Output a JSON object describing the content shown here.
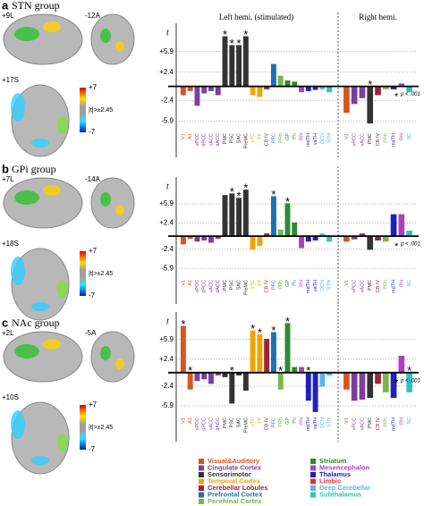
{
  "chart_data": [
    {
      "type": "bar",
      "panel": "a",
      "title": "STN group",
      "slice_labels": [
        "+9L",
        "-12A",
        "+17S"
      ],
      "colorbar_ticks": [
        {
          "value": 7,
          "label": "+7"
        },
        -7
      ],
      "threshold_label": "|t|>±2.45",
      "ylabel": "t",
      "ylim": [
        -7.5,
        9.5
      ],
      "yticks": [
        {
          "value": 5.9,
          "label": "+5.9"
        },
        {
          "value": 2.4,
          "label": "+2.4"
        },
        -2.4,
        -5.9
      ],
      "star": "*",
      "note": "p < .001",
      "hemispheres": [
        {
          "name": "Left hemi. (stimulated)",
          "categories": [
            "V1",
            "A1",
            "vPCC",
            "dPCC",
            "vACC",
            "dACC",
            "PMC",
            "PSC",
            "SAC",
            "PreMC",
            "vTC",
            "TP",
            "CB IV",
            "PFC",
            "PRh",
            "GP",
            "Pu",
            "RN",
            "mdTH",
            "vaTH",
            "DCN",
            "STN"
          ],
          "colors": [
            "#d9541e",
            "#d9541e",
            "#7b3fa0",
            "#7b3fa0",
            "#7b3fa0",
            "#7b3fa0",
            "#333333",
            "#333333",
            "#333333",
            "#333333",
            "#f0a400",
            "#f0a400",
            "#a0203c",
            "#1f6fb5",
            "#7ab648",
            "#2e8b2e",
            "#2e8b2e",
            "#b040c0",
            "#2020c0",
            "#2020c0",
            "#5bb5e8",
            "#30c0c0"
          ],
          "values": [
            -1.5,
            -0.8,
            -3.3,
            -1.2,
            -0.8,
            -1.5,
            8.5,
            7.0,
            7.0,
            8.5,
            -1.5,
            -1.8,
            -0.5,
            3.8,
            1.8,
            1.0,
            0.8,
            -1.0,
            -0.8,
            -0.6,
            -0.5,
            -1.0
          ],
          "stars": [
            6,
            7,
            8,
            9
          ]
        },
        {
          "name": "Right hemi.",
          "categories": [
            "V1",
            "vPCC",
            "vACC",
            "PMC",
            "CB IV",
            "PRh",
            "mdTH",
            "RN",
            "SC"
          ],
          "colors": [
            "#d9541e",
            "#7b3fa0",
            "#7b3fa0",
            "#333333",
            "#a0203c",
            "#7ab648",
            "#2020c0",
            "#b040c0",
            "#30c0c0"
          ],
          "values": [
            -4.5,
            -3.0,
            -2.0,
            -6.3,
            -1.5,
            -0.5,
            -0.5,
            0.5,
            -1.0
          ],
          "stars": [
            3
          ]
        }
      ]
    },
    {
      "type": "bar",
      "panel": "b",
      "title": "GPi group",
      "slice_labels": [
        "+7L",
        "-14A",
        "+18S"
      ],
      "colorbar_ticks": [
        {
          "value": 7,
          "label": "+7"
        },
        -7
      ],
      "threshold_label": "|t|>±2.45",
      "ylabel": "t",
      "ylim": [
        -7.5,
        9.5
      ],
      "yticks": [
        {
          "value": 5.9,
          "label": "+5.9"
        },
        {
          "value": 2.4,
          "label": "+2.4"
        },
        -2.4,
        -5.9
      ],
      "star": "*",
      "note": "p < .001",
      "hemispheres": [
        {
          "categories": [
            "V1",
            "A1",
            "vPCC",
            "dPCC",
            "vACC",
            "dACC",
            "PMC",
            "PSC",
            "SAC",
            "PreMC",
            "vTC",
            "TP",
            "CB IV",
            "PFC",
            "PRh",
            "GP",
            "Pu",
            "RN",
            "mdTH",
            "vaTH",
            "DCN",
            "STN"
          ],
          "colors": [
            "#d9541e",
            "#d9541e",
            "#7b3fa0",
            "#7b3fa0",
            "#7b3fa0",
            "#7b3fa0",
            "#333333",
            "#333333",
            "#333333",
            "#333333",
            "#f0a400",
            "#f0a400",
            "#a0203c",
            "#1f6fb5",
            "#7ab648",
            "#2e8b2e",
            "#2e8b2e",
            "#b040c0",
            "#2020c0",
            "#2020c0",
            "#5bb5e8",
            "#30c0c0"
          ],
          "values": [
            -1.5,
            -0.5,
            -1.0,
            -0.8,
            -1.2,
            -0.5,
            7.5,
            7.8,
            7.0,
            8.5,
            -2.5,
            -1.8,
            0.5,
            7.3,
            1.2,
            6.0,
            2.5,
            -2.2,
            -1.0,
            -0.8,
            0.5,
            -1.0
          ],
          "stars": [
            7,
            8,
            9,
            13,
            15
          ]
        },
        {
          "categories": [
            "V1",
            "vPCC",
            "vACC",
            "PMC",
            "CB IV",
            "PRh",
            "mdTH",
            "RN",
            "SC"
          ],
          "colors": [
            "#d9541e",
            "#7b3fa0",
            "#7b3fa0",
            "#333333",
            "#a0203c",
            "#7ab648",
            "#2020c0",
            "#b040c0",
            "#30c0c0"
          ],
          "values": [
            -1.0,
            -0.6,
            0.5,
            -2.5,
            -0.8,
            -1.0,
            4.0,
            4.0,
            1.0
          ],
          "stars": []
        }
      ]
    },
    {
      "type": "bar",
      "panel": "c",
      "title": "NAc group",
      "slice_labels": [
        "+2L",
        "-5A",
        "+10S"
      ],
      "colorbar_ticks": [
        {
          "value": 7,
          "label": "+7"
        },
        -7
      ],
      "threshold_label": "|t|>±2.45",
      "ylabel": "t",
      "ylim": [
        -7.5,
        9.5
      ],
      "yticks": [
        {
          "value": 5.9,
          "label": "+5.9"
        },
        {
          "value": 2.4,
          "label": "+2.4"
        },
        -2.4,
        -5.9
      ],
      "star": "*",
      "note": "p < .001",
      "hemispheres": [
        {
          "categories": [
            "V1",
            "A1",
            "vPCC",
            "dPCC",
            "vACC",
            "dACC",
            "PMC",
            "PSC",
            "SAC",
            "PreMC",
            "vTC",
            "TP",
            "CB IV",
            "PFC",
            "PRh",
            "GP",
            "Pu",
            "RN",
            "mdTH",
            "vaTH",
            "DCN",
            "STN"
          ],
          "colors": [
            "#d9541e",
            "#d9541e",
            "#7b3fa0",
            "#7b3fa0",
            "#7b3fa0",
            "#7b3fa0",
            "#333333",
            "#333333",
            "#333333",
            "#333333",
            "#f0a400",
            "#f0a400",
            "#a0203c",
            "#1f6fb5",
            "#7ab648",
            "#2e8b2e",
            "#2e8b2e",
            "#b040c0",
            "#2020c0",
            "#2020c0",
            "#5bb5e8",
            "#30c0c0"
          ],
          "values": [
            8.3,
            -3.0,
            -1.5,
            -1.2,
            -2.0,
            -0.5,
            -0.8,
            -5.5,
            -0.5,
            -3.2,
            7.5,
            6.8,
            6.0,
            7.2,
            -3.0,
            8.8,
            1.0,
            1.0,
            -5.0,
            -7.0,
            -2.5,
            -0.5
          ],
          "stars": [
            0,
            1,
            7,
            10,
            11,
            13,
            14,
            15,
            18
          ]
        },
        {
          "categories": [
            "V1",
            "vPCC",
            "vACC",
            "PMC",
            "CB IV",
            "PRh",
            "mdTH",
            "RN",
            "SC"
          ],
          "colors": [
            "#d9541e",
            "#7b3fa0",
            "#7b3fa0",
            "#333333",
            "#a0203c",
            "#7ab648",
            "#2020c0",
            "#b040c0",
            "#30c0c0"
          ],
          "values": [
            -3.0,
            -5.0,
            -4.8,
            -4.5,
            -2.0,
            -3.5,
            -4.5,
            3.0,
            -3.5
          ],
          "stars": [
            8
          ]
        }
      ]
    }
  ],
  "legend": [
    {
      "name": "Visual&Auditory",
      "color": "#d9541e"
    },
    {
      "name": "Cingulate Cortex",
      "color": "#7b3fa0"
    },
    {
      "name": "Sensorimotor",
      "color": "#333333"
    },
    {
      "name": "Temporal Cortex",
      "color": "#f0a400"
    },
    {
      "name": "Cerebellar Lobules",
      "color": "#a0203c"
    },
    {
      "name": "Prefrontal Cortex",
      "color": "#1f6fb5"
    },
    {
      "name": "Perirhinal Cortex",
      "color": "#7ab648"
    },
    {
      "name": "Striatum",
      "color": "#2e8b2e"
    },
    {
      "name": "Mesencephalon",
      "color": "#b040c0"
    },
    {
      "name": "Thalamus",
      "color": "#2020c0"
    },
    {
      "name": "Limbic",
      "color": "#e0303c"
    },
    {
      "name": "Deep Cerebellar",
      "color": "#5bb5e8"
    },
    {
      "name": "Subthalamus",
      "color": "#30c0c0"
    }
  ]
}
